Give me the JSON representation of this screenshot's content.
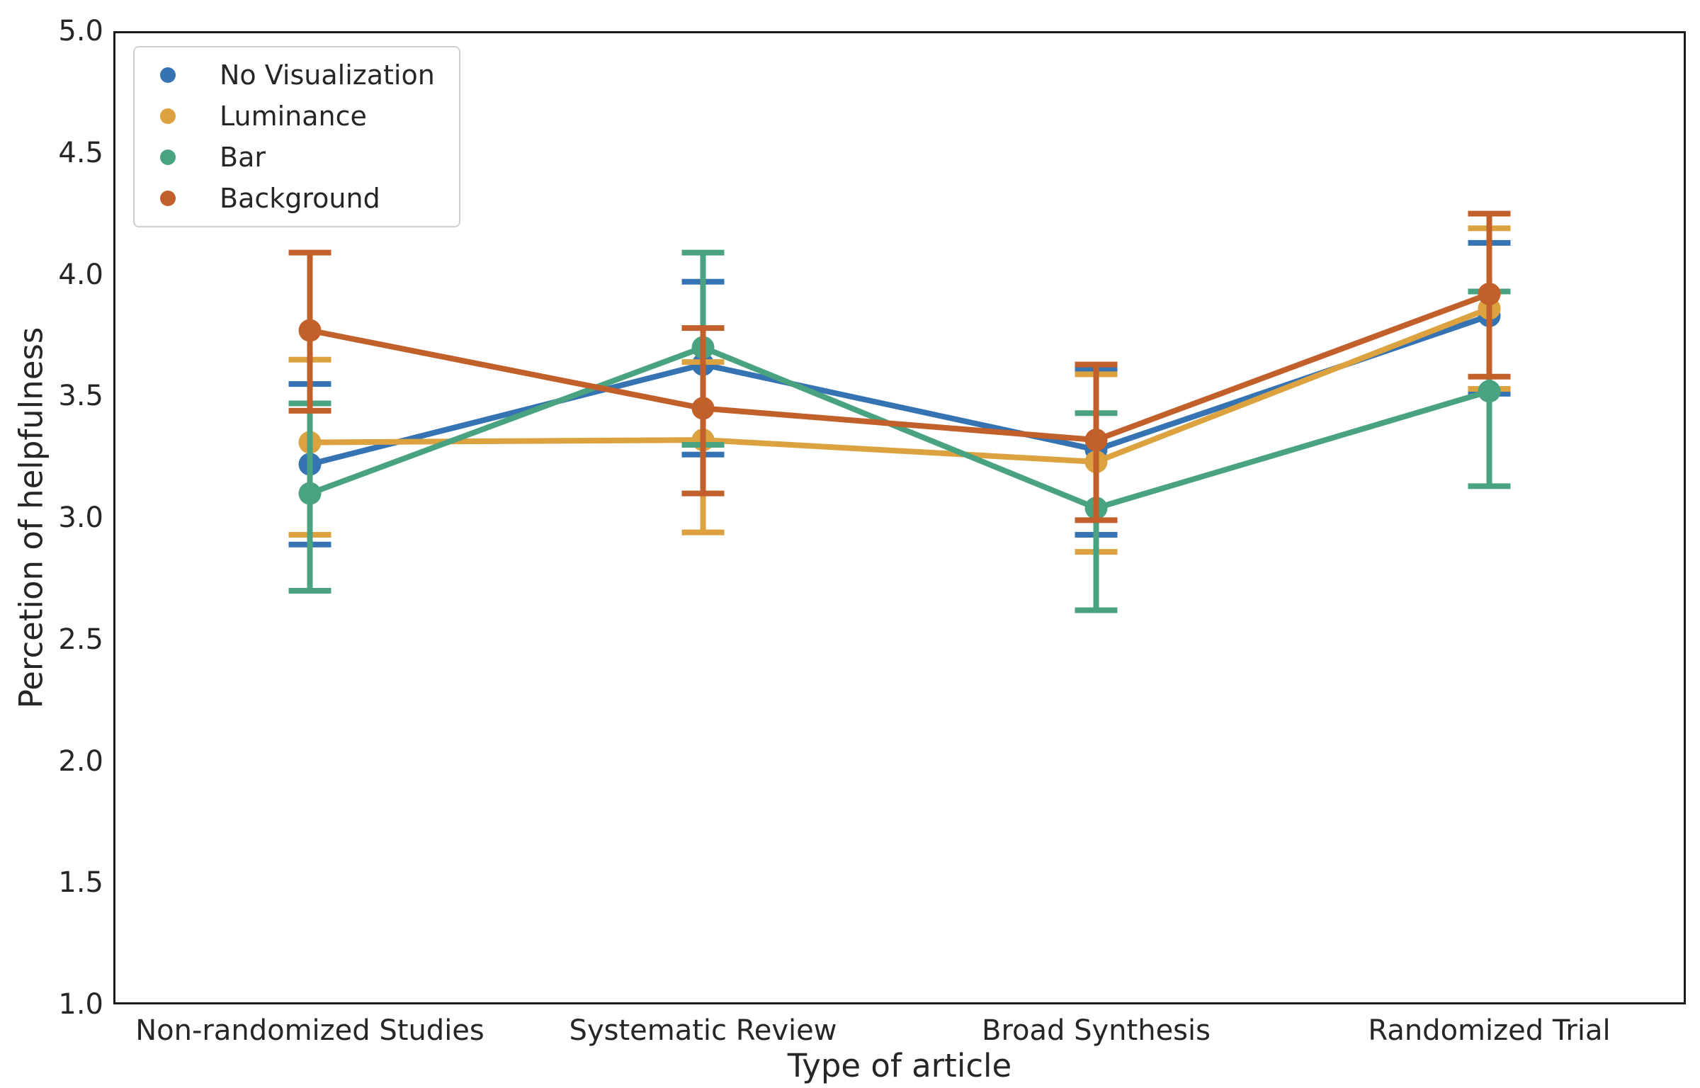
{
  "figure": {
    "background": "#ffffff",
    "text_color": "#262626",
    "spine_color": "#1a1a1a"
  },
  "legend": {
    "position": "upper left",
    "items": [
      {
        "label": "No Visualization",
        "color": "#3573b2"
      },
      {
        "label": "Luminance",
        "color": "#dba23f"
      },
      {
        "label": "Bar",
        "color": "#4aa380"
      },
      {
        "label": "Background",
        "color": "#c2602b"
      }
    ]
  },
  "chart_data": {
    "type": "line",
    "title": "",
    "xlabel": "Type of article",
    "ylabel": "Percetion of helpfulness",
    "categories": [
      "Non-randomized Studies",
      "Systematic Review",
      "Broad Synthesis",
      "Randomized Trial"
    ],
    "ylim": [
      1.0,
      5.0
    ],
    "yticks": [
      "5.0",
      "4.5",
      "4.0",
      "3.5",
      "3.0",
      "2.5",
      "2.0",
      "1.5",
      "1.0"
    ],
    "grid": false,
    "legend_position": "upper left",
    "error_bars": true,
    "marker": "point",
    "series": [
      {
        "name": "No Visualization",
        "color": "#3573b2",
        "values": [
          3.22,
          3.63,
          3.28,
          3.83
        ],
        "err_low": [
          2.89,
          3.26,
          2.93,
          3.51
        ],
        "err_high": [
          3.55,
          3.97,
          3.61,
          4.13
        ]
      },
      {
        "name": "Luminance",
        "color": "#dba23f",
        "values": [
          3.31,
          3.32,
          3.23,
          3.86
        ],
        "err_low": [
          2.93,
          2.94,
          2.86,
          3.53
        ],
        "err_high": [
          3.65,
          3.64,
          3.59,
          4.19
        ]
      },
      {
        "name": "Bar",
        "color": "#4aa380",
        "values": [
          3.1,
          3.7,
          3.04,
          3.52
        ],
        "err_low": [
          2.7,
          3.3,
          2.62,
          3.13
        ],
        "err_high": [
          3.47,
          4.09,
          3.43,
          3.93
        ]
      },
      {
        "name": "Background",
        "color": "#c2602b",
        "values": [
          3.77,
          3.45,
          3.32,
          3.92
        ],
        "err_low": [
          3.44,
          3.1,
          2.99,
          3.58
        ],
        "err_high": [
          4.09,
          3.78,
          3.63,
          4.25
        ]
      }
    ]
  }
}
